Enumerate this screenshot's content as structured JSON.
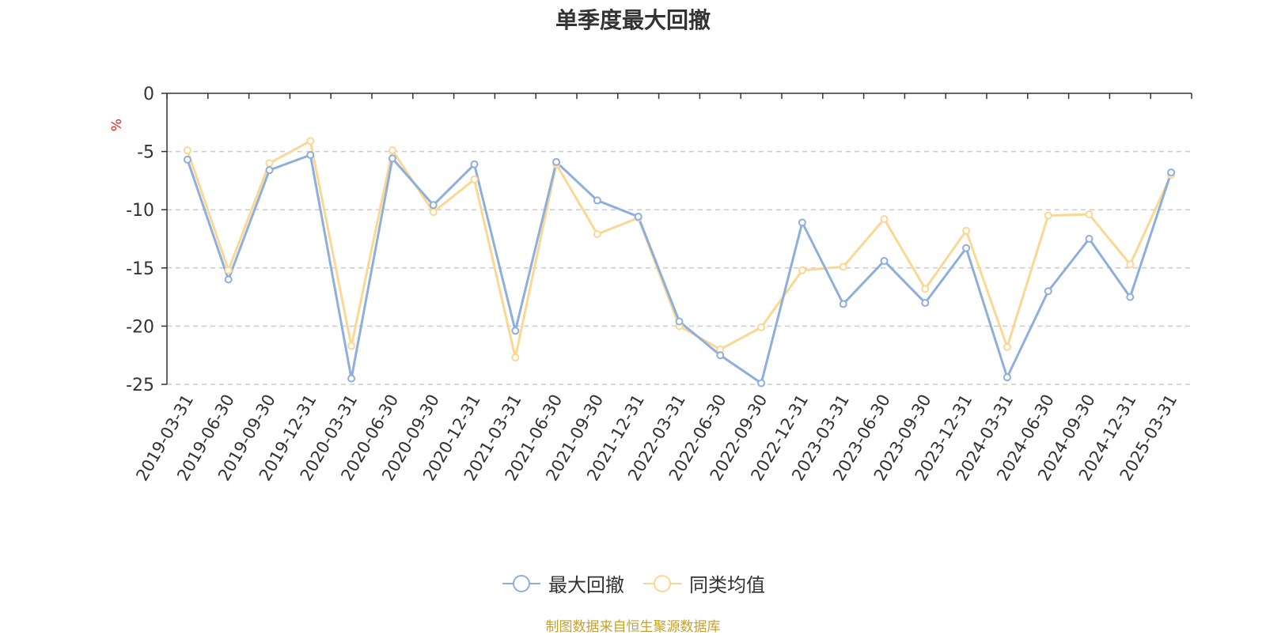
{
  "title": "单季度最大回撤",
  "source_note": "制图数据来自恒生聚源数据库",
  "colors": {
    "series1": "#8eaedc",
    "series2": "#fad894",
    "unit": "#e0201d",
    "axis": "#333333",
    "grid": "#cccccc",
    "note": "#c8a02a"
  },
  "legend": [
    {
      "label": "最大回撤",
      "icon": "circle-line-icon"
    },
    {
      "label": "同类均值",
      "icon": "circle-line-icon"
    }
  ],
  "chart_data": {
    "type": "line",
    "title": "单季度最大回撤",
    "ylabel": "%",
    "xlabel": "",
    "ylim": [
      -25,
      0
    ],
    "yticks": [
      0,
      -5,
      -10,
      -15,
      -20,
      -25
    ],
    "grid": true,
    "legend_position": "bottom",
    "categories": [
      "2019-03-31",
      "2019-06-30",
      "2019-09-30",
      "2019-12-31",
      "2020-03-31",
      "2020-06-30",
      "2020-09-30",
      "2020-12-31",
      "2021-03-31",
      "2021-06-30",
      "2021-09-30",
      "2021-12-31",
      "2022-03-31",
      "2022-06-30",
      "2022-09-30",
      "2022-12-31",
      "2023-03-31",
      "2023-06-30",
      "2023-09-30",
      "2023-12-31",
      "2024-03-31",
      "2024-06-30",
      "2024-09-30",
      "2024-12-31",
      "2025-03-31"
    ],
    "series": [
      {
        "name": "最大回撤",
        "values": [
          -5.7,
          -16.0,
          -6.6,
          -5.3,
          -24.5,
          -5.6,
          -9.6,
          -6.1,
          -20.4,
          -5.9,
          -9.2,
          -10.6,
          -19.6,
          -22.5,
          -24.9,
          -11.1,
          -18.1,
          -14.4,
          -18.0,
          -13.3,
          -24.4,
          -17.0,
          -12.5,
          -17.5,
          -6.8
        ]
      },
      {
        "name": "同类均值",
        "values": [
          -4.9,
          -15.2,
          -6.0,
          -4.1,
          -21.7,
          -4.9,
          -10.2,
          -7.4,
          -22.7,
          -6.1,
          -12.1,
          -10.7,
          -20.0,
          -22.0,
          -20.1,
          -15.2,
          -14.9,
          -10.8,
          -16.8,
          -11.8,
          -21.8,
          -10.5,
          -10.4,
          -14.7,
          -7.0
        ]
      }
    ]
  }
}
